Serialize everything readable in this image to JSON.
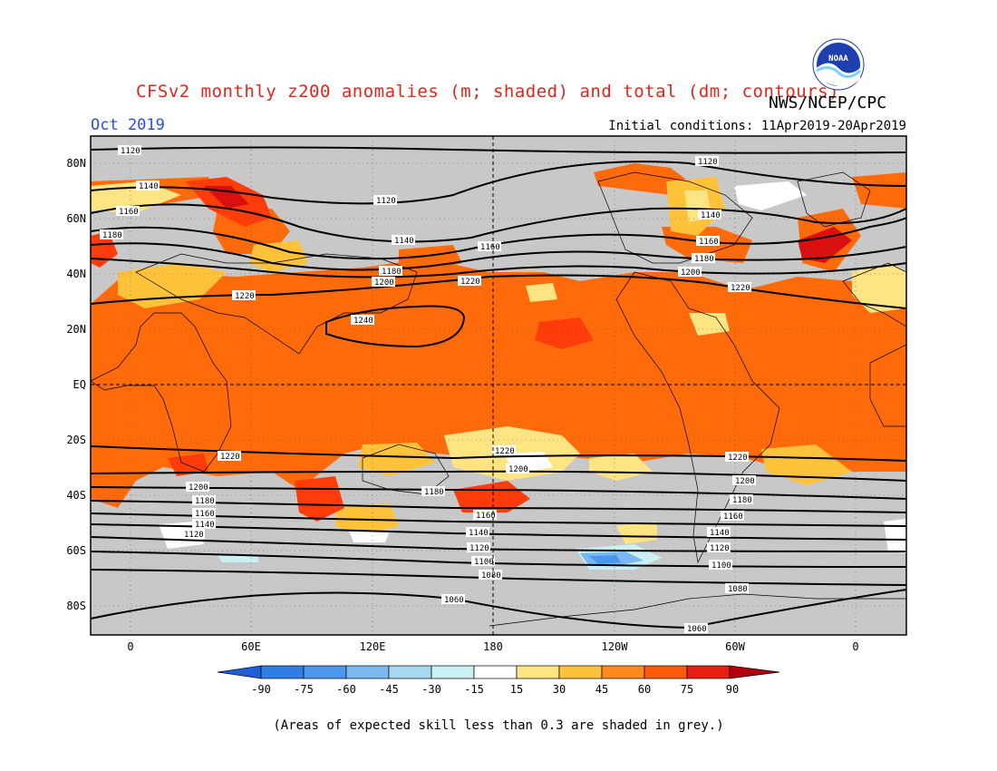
{
  "header": {
    "title": "CFSv2 monthly z200 anomalies (m; shaded) and total (dm; contours)",
    "org": "NWS/NCEP/CPC",
    "month": "Oct 2019",
    "initial_conditions": "Initial conditions: 11Apr2019-20Apr2019",
    "logo_text": "NOAA"
  },
  "axes": {
    "lat_labels": [
      "80N",
      "60N",
      "40N",
      "20N",
      "EQ",
      "20S",
      "40S",
      "60S",
      "80S"
    ],
    "lon_labels": [
      "0",
      "60E",
      "120E",
      "180",
      "120W",
      "60W",
      "0"
    ]
  },
  "colorbar": {
    "ticks": [
      "-90",
      "-75",
      "-60",
      "-45",
      "-30",
      "-15",
      "15",
      "30",
      "45",
      "60",
      "75",
      "90"
    ],
    "colors": [
      "#1f5fd6",
      "#2f7ee6",
      "#4a97ee",
      "#7ab8f2",
      "#a6d8f2",
      "#c9f0f2",
      "#ffffff",
      "#ffe483",
      "#ffc23b",
      "#ff8a1c",
      "#ff5a0a",
      "#e81e10",
      "#b4000c"
    ]
  },
  "colors": {
    "grey_low_skill": "#c8c8c8",
    "anom_15_30": "#ffe483",
    "anom_30_45": "#ffc23b",
    "anom_45_60": "#ff6a0a",
    "anom_60_75": "#ff3c0a",
    "anom_75_90": "#d81010",
    "contour": "#000000",
    "title_red": "#e0261c",
    "month_blue": "#2a4de0"
  },
  "contours": [
    {
      "label": "1120"
    },
    {
      "label": "1140"
    },
    {
      "label": "1160"
    },
    {
      "label": "1180"
    },
    {
      "label": "1200"
    },
    {
      "label": "1220"
    },
    {
      "label": "1240"
    },
    {
      "label": "1080"
    },
    {
      "label": "1060"
    },
    {
      "label": "1100"
    }
  ],
  "footnote": "(Areas of expected skill less than 0.3 are shaded in grey.)"
}
